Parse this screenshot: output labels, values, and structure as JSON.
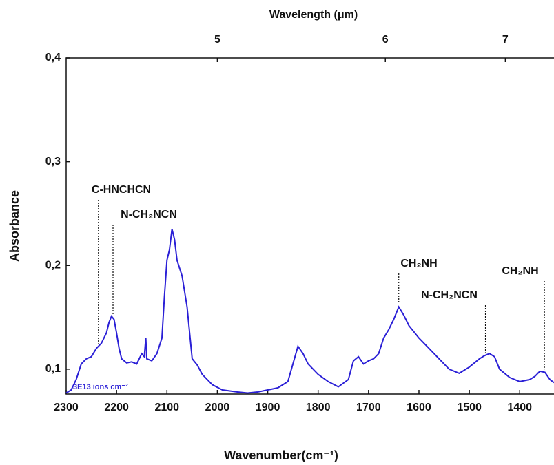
{
  "chart_data": {
    "type": "line",
    "xlabel": "Wavenumber(cm⁻¹)",
    "ylabel": "Absorbance",
    "x2label": "Wavelength (μm)",
    "xlim": [
      2300,
      1332
    ],
    "ylim": [
      0.076,
      0.4
    ],
    "xticks": [
      2300,
      2200,
      2100,
      2000,
      1900,
      1800,
      1700,
      1600,
      1500,
      1400
    ],
    "yticks": [
      {
        "value": 0.1,
        "label": "0,1"
      },
      {
        "value": 0.2,
        "label": "0,2"
      },
      {
        "value": 0.3,
        "label": "0,3"
      },
      {
        "value": 0.4,
        "label": "0,4"
      }
    ],
    "x2ticks": [
      5,
      6,
      7
    ],
    "x": [
      2300,
      2290,
      2280,
      2270,
      2260,
      2250,
      2240,
      2230,
      2220,
      2215,
      2210,
      2205,
      2200,
      2195,
      2190,
      2180,
      2170,
      2160,
      2150,
      2145,
      2142,
      2140,
      2130,
      2120,
      2110,
      2105,
      2100,
      2095,
      2090,
      2085,
      2080,
      2070,
      2060,
      2050,
      2040,
      2030,
      2010,
      1990,
      1960,
      1940,
      1920,
      1900,
      1880,
      1860,
      1850,
      1840,
      1830,
      1820,
      1800,
      1780,
      1760,
      1740,
      1730,
      1720,
      1710,
      1700,
      1690,
      1680,
      1670,
      1660,
      1650,
      1640,
      1630,
      1620,
      1600,
      1580,
      1560,
      1540,
      1520,
      1500,
      1480,
      1470,
      1460,
      1450,
      1440,
      1420,
      1400,
      1380,
      1370,
      1360,
      1350,
      1340,
      1332
    ],
    "series": [
      {
        "name": "3E13 ions cm⁻²",
        "color": "#2a1fd6",
        "values": [
          0.077,
          0.08,
          0.09,
          0.105,
          0.11,
          0.112,
          0.12,
          0.125,
          0.135,
          0.145,
          0.151,
          0.148,
          0.135,
          0.12,
          0.11,
          0.106,
          0.107,
          0.105,
          0.115,
          0.112,
          0.13,
          0.11,
          0.108,
          0.115,
          0.13,
          0.17,
          0.205,
          0.215,
          0.235,
          0.225,
          0.205,
          0.19,
          0.16,
          0.11,
          0.104,
          0.095,
          0.085,
          0.08,
          0.078,
          0.077,
          0.078,
          0.08,
          0.082,
          0.088,
          0.105,
          0.122,
          0.115,
          0.105,
          0.095,
          0.088,
          0.083,
          0.09,
          0.108,
          0.112,
          0.105,
          0.108,
          0.11,
          0.115,
          0.13,
          0.138,
          0.148,
          0.16,
          0.152,
          0.142,
          0.13,
          0.12,
          0.11,
          0.1,
          0.096,
          0.102,
          0.11,
          0.113,
          0.115,
          0.112,
          0.1,
          0.092,
          0.088,
          0.09,
          0.093,
          0.098,
          0.097,
          0.09,
          0.087
        ]
      }
    ],
    "annotations": [
      {
        "text": "C-HNCHCN",
        "x": 2236
      },
      {
        "text": "N-CH₂NCN",
        "x": 2207
      },
      {
        "text": "CH₂NH",
        "x": 1640
      },
      {
        "text": "N-CH₂NCN",
        "x": 1468
      },
      {
        "text": "CH₂NH",
        "x": 1351
      }
    ]
  }
}
